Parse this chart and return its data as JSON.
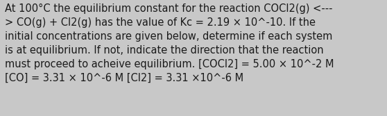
{
  "text": "At 100°C the equilibrium constant for the reaction COCl2(g) <---\n> CO(g) + Cl2(g) has the value of Kc = 2.19 × 10^-10. If the\ninitial concentrations are given below, determine if each system\nis at equilibrium. If not, indicate the direction that the reaction\nmust proceed to acheive equilibrium. [COCl2] = 5.00 × 10^-2 M\n[CO] = 3.31 × 10^-6 M [Cl2] = 3.31 ×10^-6 M",
  "background_color": "#c8c8c8",
  "text_color": "#1a1a1a",
  "font_size": 10.5,
  "figsize": [
    5.58,
    1.67
  ],
  "dpi": 100
}
